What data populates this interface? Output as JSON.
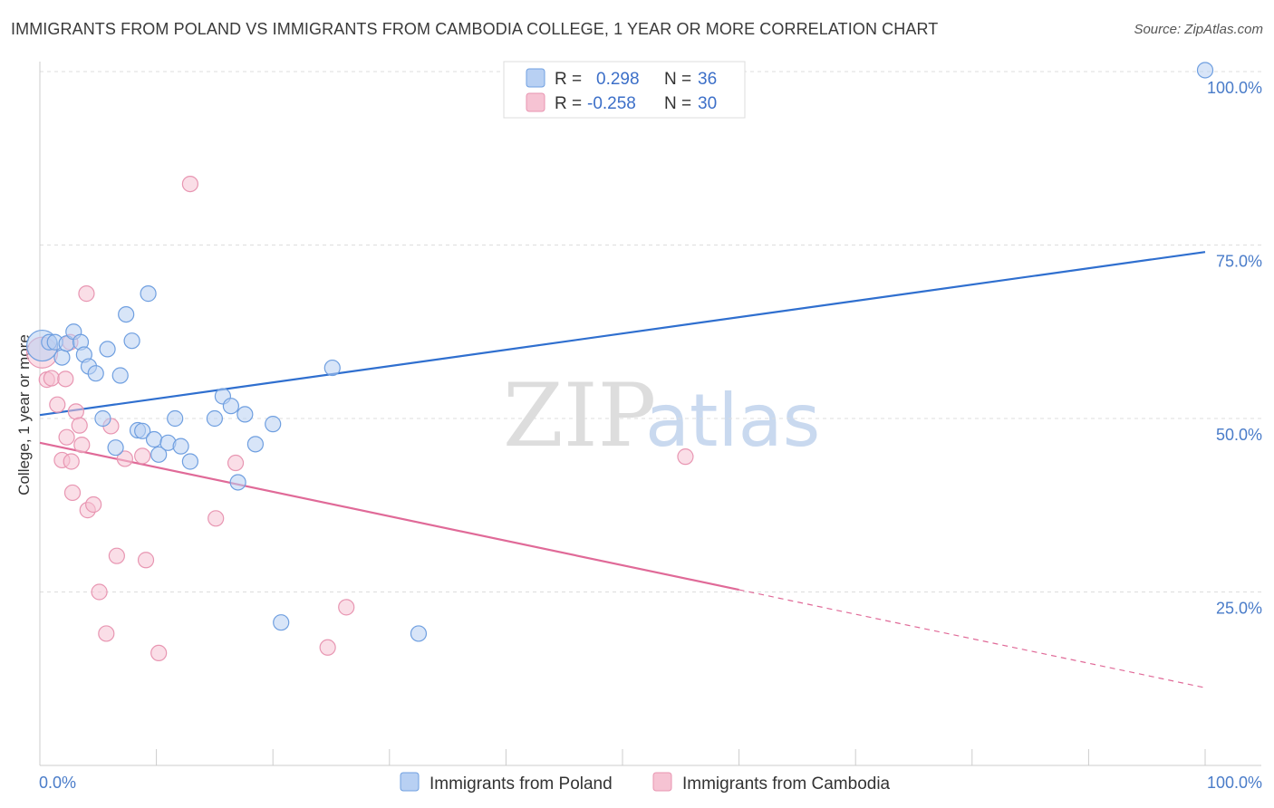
{
  "header": {
    "title": "IMMIGRANTS FROM POLAND VS IMMIGRANTS FROM CAMBODIA COLLEGE, 1 YEAR OR MORE CORRELATION CHART",
    "source": "Source: ZipAtlas.com"
  },
  "watermark": {
    "zip": "ZIP",
    "atlas": "atlas"
  },
  "colors": {
    "poland_fill": "#b8d0f3",
    "poland_stroke": "#6f9fe0",
    "poland_line": "#2f6fcf",
    "cambodia_fill": "#f6c3d3",
    "cambodia_stroke": "#e896b2",
    "cambodia_line": "#e06a98",
    "grid": "#dddddd",
    "tick_text": "#4a7cc9"
  },
  "legend": {
    "rows": [
      {
        "r_label": "R =",
        "r_value": "0.298",
        "n_label": "N =",
        "n_value": "36"
      },
      {
        "r_label": "R =",
        "r_value": "-0.258",
        "n_label": "N =",
        "n_value": "30"
      }
    ]
  },
  "chart_data": {
    "type": "scatter",
    "title": "IMMIGRANTS FROM POLAND VS IMMIGRANTS FROM CAMBODIA COLLEGE, 1 YEAR OR MORE CORRELATION CHART",
    "xlabel": "",
    "ylabel": "College, 1 year or more",
    "xlim": [
      0,
      100
    ],
    "ylim": [
      0,
      104
    ],
    "x_tick_labels": [
      "0.0%",
      "100.0%"
    ],
    "y_ticks": [
      {
        "value": 25,
        "label": "25.0%"
      },
      {
        "value": 50,
        "label": "50.0%"
      },
      {
        "value": 75,
        "label": "75.0%"
      },
      {
        "value": 100,
        "label": "100.0%"
      }
    ],
    "grid": true,
    "legend_position": "top-center",
    "series": [
      {
        "name": "Immigrants from Poland",
        "color": "#6f9fe0",
        "trend": {
          "x0": 0,
          "y0": 50.5,
          "x1": 100,
          "y1": 74.0,
          "solid_to": 100
        },
        "points": [
          [
            0.2,
            60.5
          ],
          [
            0.8,
            61.0
          ],
          [
            1.3,
            61.0
          ],
          [
            1.9,
            58.8
          ],
          [
            2.3,
            60.8
          ],
          [
            2.9,
            62.5
          ],
          [
            3.5,
            61.0
          ],
          [
            3.8,
            59.2
          ],
          [
            4.2,
            57.5
          ],
          [
            4.8,
            56.5
          ],
          [
            5.4,
            50.0
          ],
          [
            5.8,
            60.0
          ],
          [
            6.5,
            45.8
          ],
          [
            6.9,
            56.2
          ],
          [
            7.4,
            65.0
          ],
          [
            7.9,
            61.2
          ],
          [
            8.4,
            48.3
          ],
          [
            8.8,
            48.2
          ],
          [
            9.3,
            68.0
          ],
          [
            9.8,
            47.0
          ],
          [
            10.2,
            44.8
          ],
          [
            11.0,
            46.5
          ],
          [
            11.6,
            50.0
          ],
          [
            12.1,
            46.0
          ],
          [
            12.9,
            43.8
          ],
          [
            15.0,
            50.0
          ],
          [
            15.7,
            53.2
          ],
          [
            16.4,
            51.8
          ],
          [
            17.0,
            40.8
          ],
          [
            17.6,
            50.6
          ],
          [
            18.5,
            46.3
          ],
          [
            20.0,
            49.2
          ],
          [
            20.7,
            20.6
          ],
          [
            25.1,
            57.3
          ],
          [
            32.5,
            19.0
          ],
          [
            100,
            100.2
          ]
        ]
      },
      {
        "name": "Immigrants from Cambodia",
        "color": "#e896b2",
        "trend": {
          "x0": 0,
          "y0": 46.5,
          "x1": 100,
          "y1": 11.2,
          "solid_to": 60
        },
        "points": [
          [
            0.2,
            59.5
          ],
          [
            0.6,
            55.6
          ],
          [
            1.0,
            55.8
          ],
          [
            1.5,
            52.0
          ],
          [
            1.9,
            44.0
          ],
          [
            2.2,
            55.7
          ],
          [
            2.3,
            47.3
          ],
          [
            2.6,
            61.0
          ],
          [
            2.7,
            43.8
          ],
          [
            2.8,
            39.3
          ],
          [
            3.1,
            51.0
          ],
          [
            3.4,
            49.0
          ],
          [
            3.6,
            46.2
          ],
          [
            4.0,
            68.0
          ],
          [
            4.1,
            36.8
          ],
          [
            4.6,
            37.6
          ],
          [
            5.1,
            25.0
          ],
          [
            5.7,
            19.0
          ],
          [
            6.1,
            48.9
          ],
          [
            6.6,
            30.2
          ],
          [
            7.3,
            44.2
          ],
          [
            8.8,
            44.6
          ],
          [
            9.1,
            29.6
          ],
          [
            10.2,
            16.2
          ],
          [
            12.9,
            83.8
          ],
          [
            15.1,
            35.6
          ],
          [
            16.8,
            43.6
          ],
          [
            24.7,
            17.0
          ],
          [
            26.3,
            22.8
          ],
          [
            55.4,
            44.5
          ]
        ]
      }
    ]
  }
}
